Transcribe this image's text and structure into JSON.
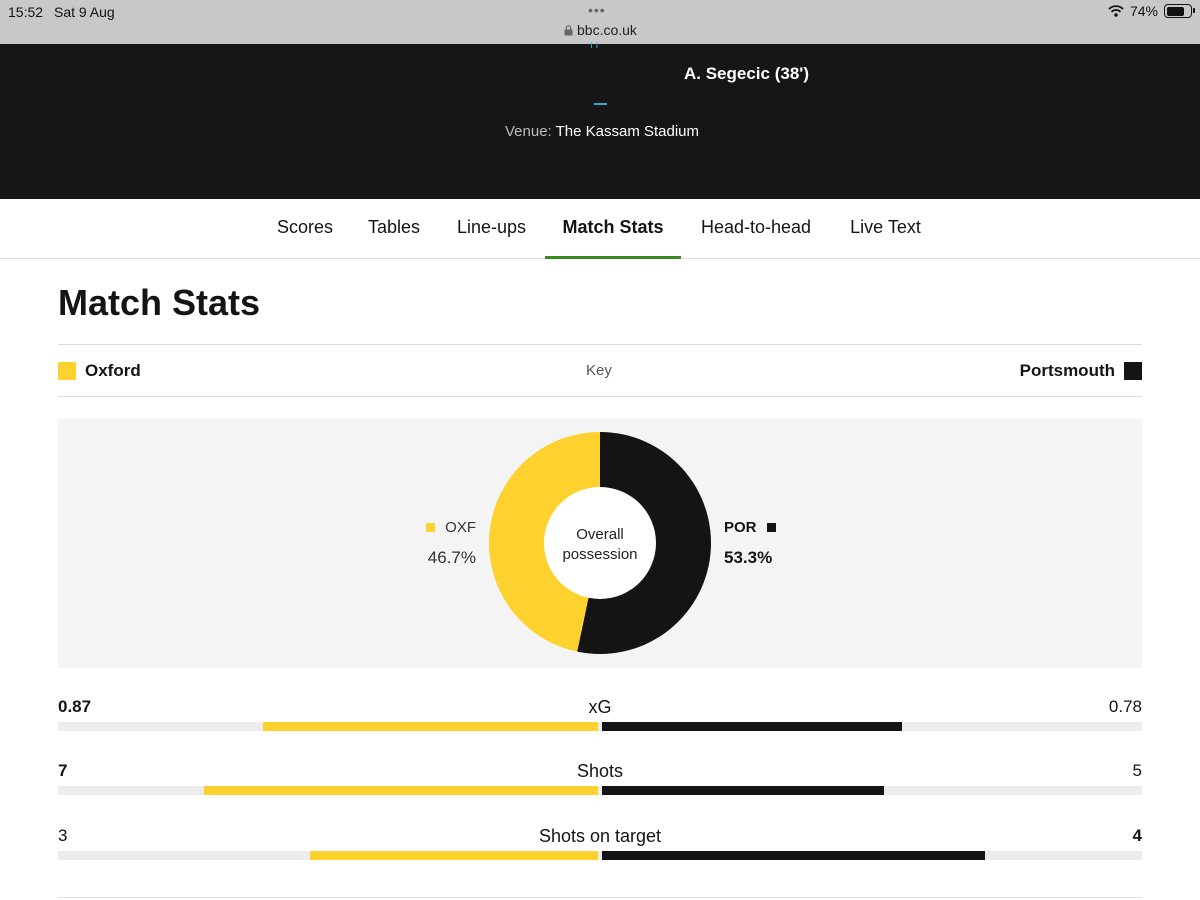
{
  "status_bar": {
    "time": "15:52",
    "date": "Sat 9 Aug",
    "url": "bbc.co.uk",
    "battery": "74%",
    "battery_fraction": 0.74
  },
  "header": {
    "scorer": "A. Segecic (38')",
    "venue_label": "Venue:",
    "venue": "The Kassam Stadium"
  },
  "tabs": [
    {
      "label": "Scores"
    },
    {
      "label": "Tables"
    },
    {
      "label": "Line-ups"
    },
    {
      "label": "Match Stats",
      "active": true
    },
    {
      "label": "Head-to-head"
    },
    {
      "label": "Live Text"
    }
  ],
  "page_title": "Match Stats",
  "key": {
    "home_team": "Oxford",
    "label": "Key",
    "away_team": "Portsmouth"
  },
  "colors": {
    "home": "#fdd22e",
    "away": "#141414",
    "tab_active": "#3b8a1e"
  },
  "possession": {
    "home_code": "OXF",
    "home_value": "46.7%",
    "home_fraction": 0.467,
    "away_code": "POR",
    "away_value": "53.3%",
    "away_fraction": 0.533,
    "center_line1": "Overall",
    "center_line2": "possession"
  },
  "stats": [
    {
      "label": "xG",
      "home": "0.87",
      "away": "0.78",
      "home_num": 0.87,
      "away_num": 0.78,
      "leader": "home"
    },
    {
      "label": "Shots",
      "home": "7",
      "away": "5",
      "home_num": 7,
      "away_num": 5,
      "leader": "home"
    },
    {
      "label": "Shots on target",
      "home": "3",
      "away": "4",
      "home_num": 3,
      "away_num": 4,
      "leader": "away"
    }
  ]
}
